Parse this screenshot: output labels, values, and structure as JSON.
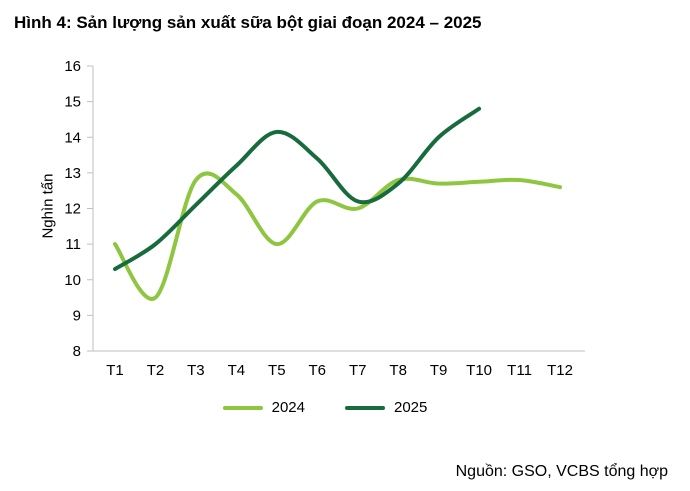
{
  "title": "Hình 4: Sản lượng sản xuất sữa bột giai đoạn 2024 – 2025",
  "source": "Nguồn: GSO, VCBS tổng hợp",
  "chart_data": {
    "type": "line",
    "title": "Hình 4: Sản lượng sản xuất sữa bột giai đoạn 2024 – 2025",
    "xlabel": "",
    "ylabel": "Nghìn tấn",
    "ylim": [
      8,
      16
    ],
    "yticks": [
      8,
      9,
      10,
      11,
      12,
      13,
      14,
      15,
      16
    ],
    "grid": false,
    "legend_position": "bottom",
    "categories": [
      "T1",
      "T2",
      "T3",
      "T4",
      "T5",
      "T6",
      "T7",
      "T8",
      "T9",
      "T10",
      "T11",
      "T12"
    ],
    "series": [
      {
        "name": "2024",
        "color": "#8ec641",
        "values": [
          11.0,
          9.5,
          12.8,
          12.4,
          11.0,
          12.2,
          12.0,
          12.8,
          12.7,
          12.75,
          12.8,
          12.6
        ]
      },
      {
        "name": "2025",
        "color": "#176b3c",
        "values": [
          10.3,
          11.0,
          12.1,
          13.2,
          14.15,
          13.4,
          12.2,
          12.7,
          14.0,
          14.8
        ]
      }
    ],
    "axis_color": "#bfbfbf",
    "text_color": "#000000"
  }
}
